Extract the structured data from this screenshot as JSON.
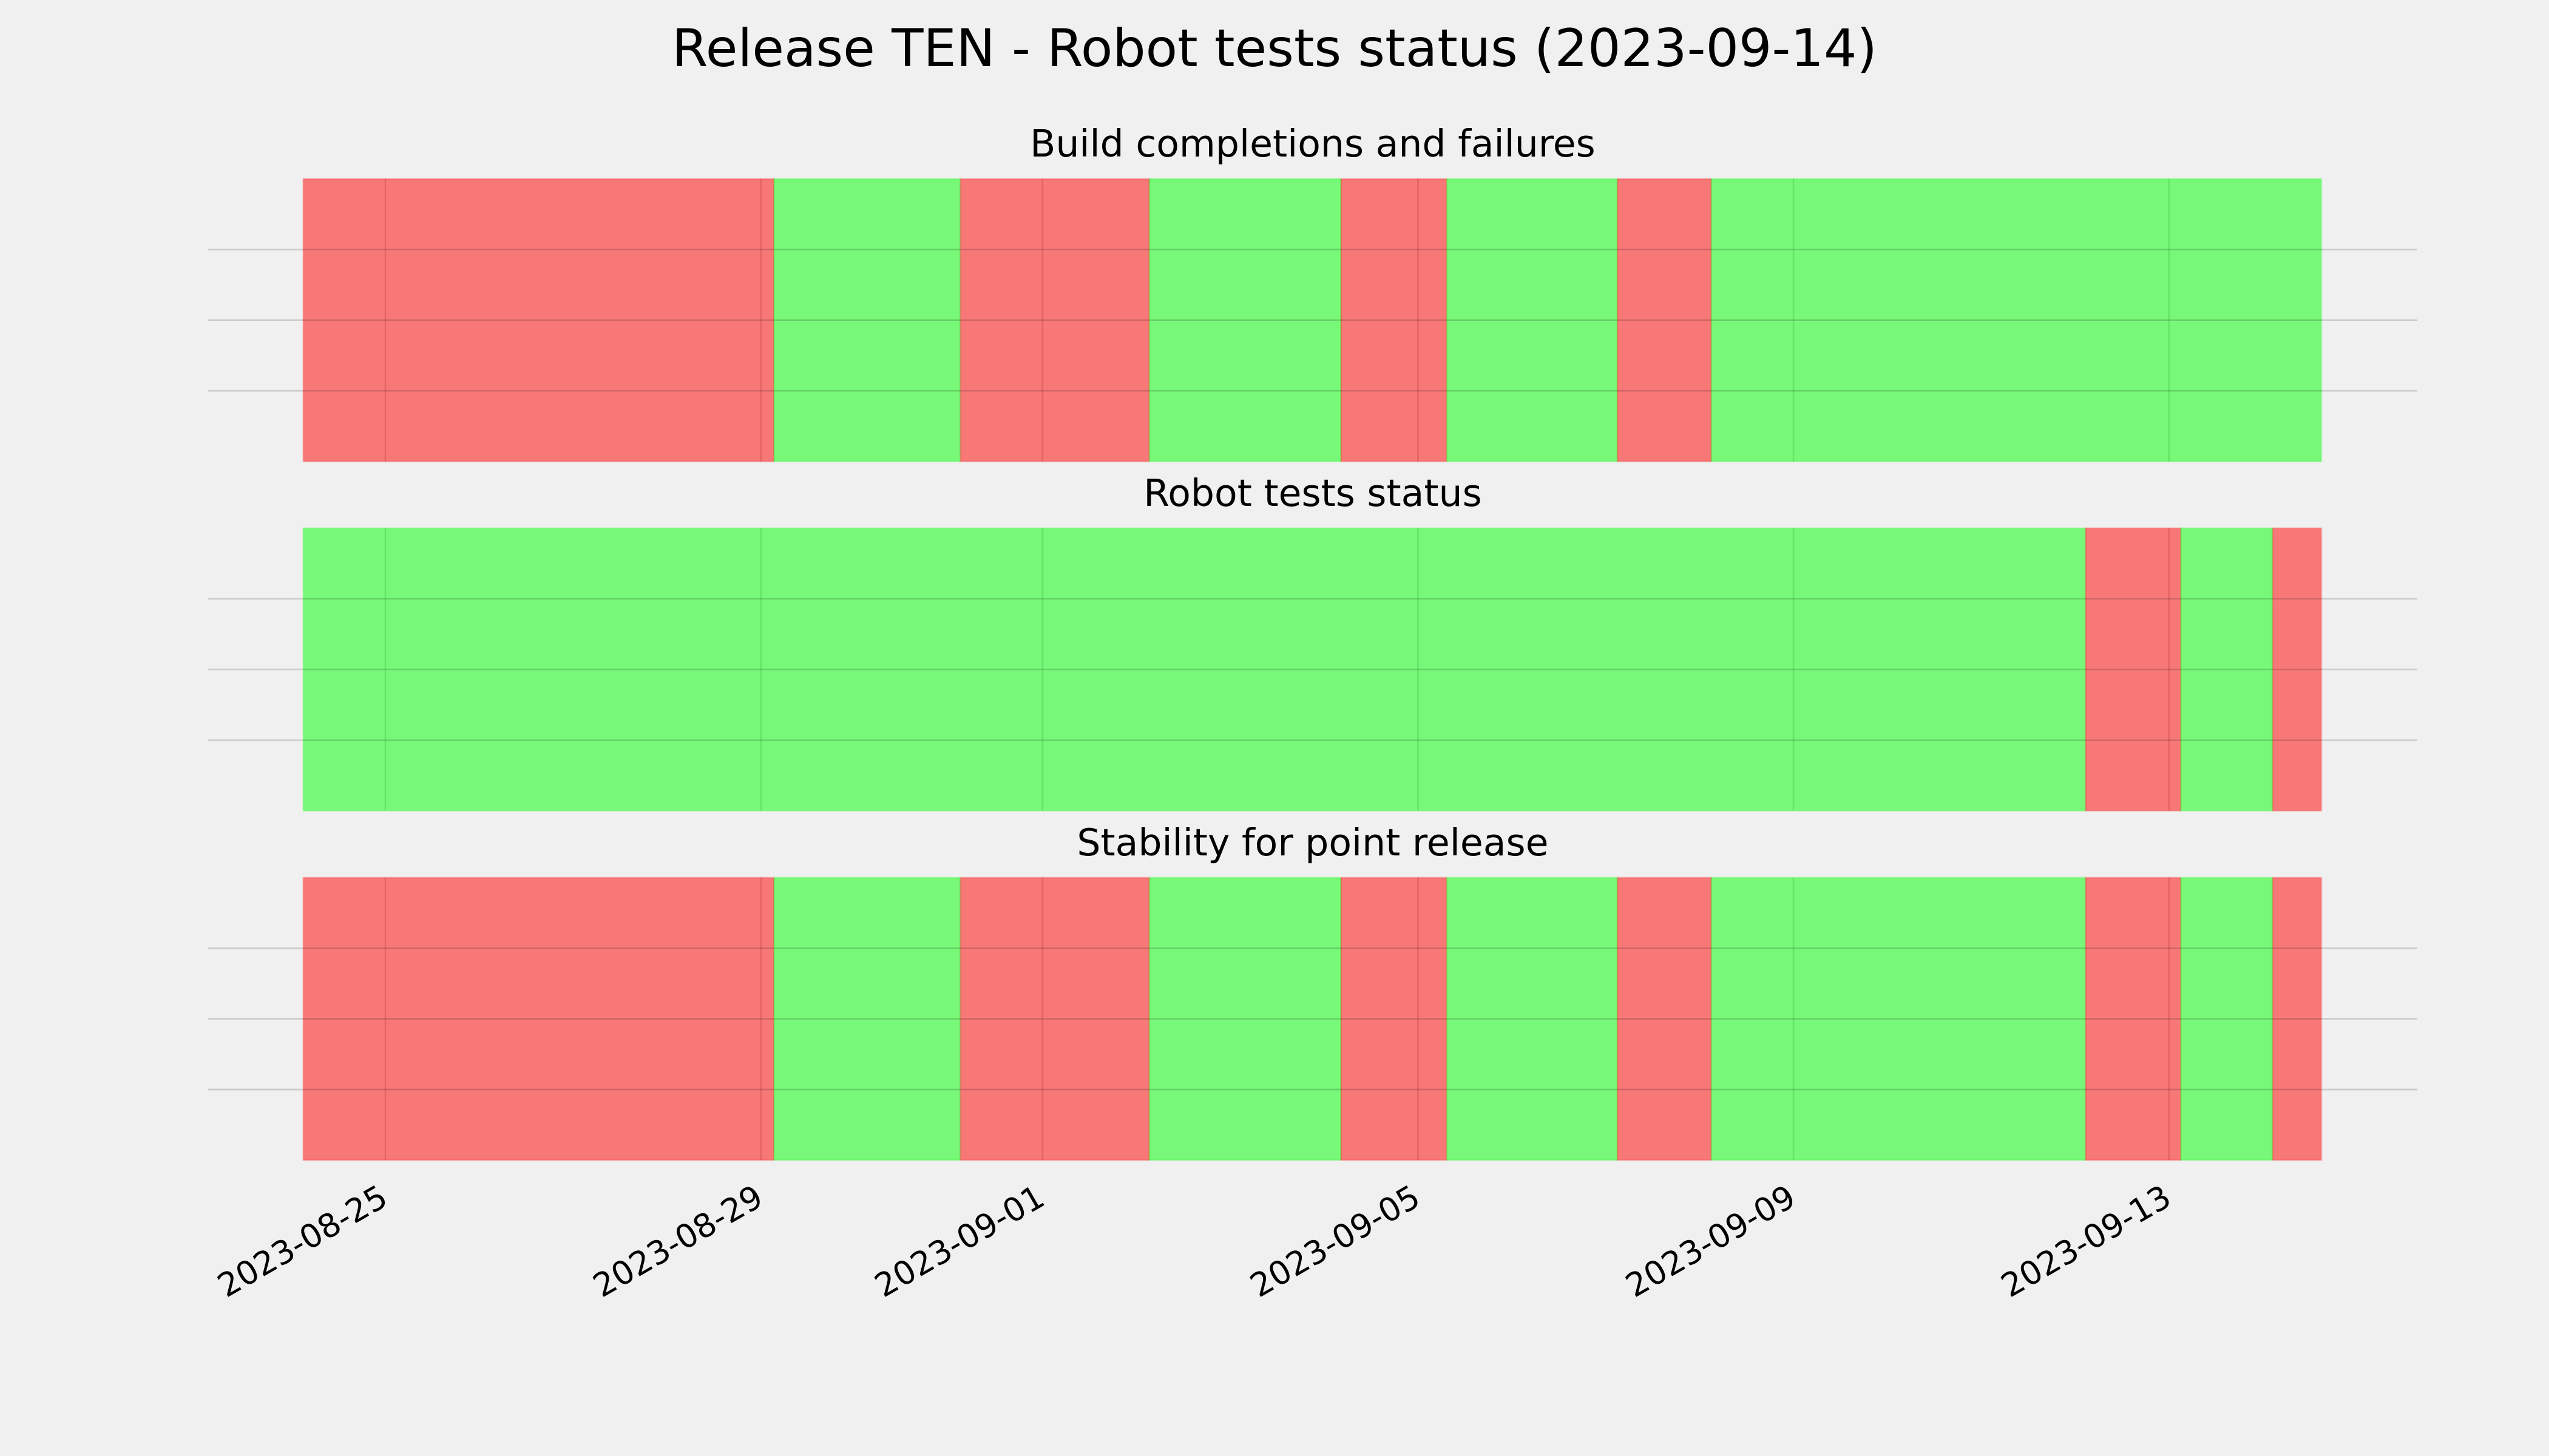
{
  "title": "Release TEN - Robot tests status (2023-09-14)",
  "chart_data": [
    {
      "type": "span",
      "title": "Build completions and failures",
      "xlim": [
        "2023-08-23T02:40",
        "2023-09-15T15:30"
      ],
      "ylim": [
        0,
        1
      ],
      "yticks": [
        0.25,
        0.5,
        0.75
      ],
      "grid": true,
      "xticks": [
        "2023-08-25",
        "2023-08-29",
        "2023-09-01",
        "2023-09-05",
        "2023-09-09",
        "2023-09-13"
      ],
      "spans": [
        {
          "start": "2023-08-24T03:00",
          "end": "2023-08-29T03:20",
          "color": "#ff0000"
        },
        {
          "start": "2023-08-29T03:20",
          "end": "2023-08-31T03:00",
          "color": "#00ff00"
        },
        {
          "start": "2023-08-31T03:00",
          "end": "2023-09-02T03:20",
          "color": "#ff0000"
        },
        {
          "start": "2023-09-02T03:20",
          "end": "2023-09-04T04:20",
          "color": "#00ff00"
        },
        {
          "start": "2023-09-04T04:20",
          "end": "2023-09-05T07:20",
          "color": "#ff0000"
        },
        {
          "start": "2023-09-05T07:20",
          "end": "2023-09-07T03:00",
          "color": "#00ff00"
        },
        {
          "start": "2023-09-07T03:00",
          "end": "2023-09-08T03:00",
          "color": "#ff0000"
        },
        {
          "start": "2023-09-08T03:00",
          "end": "2023-09-14T15:00",
          "color": "#00ff00"
        }
      ]
    },
    {
      "type": "span",
      "title": "Robot tests status",
      "xlim": [
        "2023-08-23T02:40",
        "2023-09-15T15:30"
      ],
      "ylim": [
        0,
        1
      ],
      "yticks": [
        0.25,
        0.5,
        0.75
      ],
      "grid": true,
      "xticks": [
        "2023-08-25",
        "2023-08-29",
        "2023-09-01",
        "2023-09-05",
        "2023-09-09",
        "2023-09-13"
      ],
      "spans": [
        {
          "start": "2023-08-24T03:00",
          "end": "2023-09-12T02:40",
          "color": "#00ff00"
        },
        {
          "start": "2023-09-12T02:40",
          "end": "2023-09-13T03:00",
          "color": "#ff0000"
        },
        {
          "start": "2023-09-13T03:00",
          "end": "2023-09-14T02:30",
          "color": "#00ff00"
        },
        {
          "start": "2023-09-14T02:30",
          "end": "2023-09-14T15:00",
          "color": "#ff0000"
        }
      ]
    },
    {
      "type": "span",
      "title": "Stability for point release",
      "xlim": [
        "2023-08-23T02:40",
        "2023-09-15T15:30"
      ],
      "ylim": [
        0,
        1
      ],
      "yticks": [
        0.25,
        0.5,
        0.75
      ],
      "grid": true,
      "xticks": [
        "2023-08-25",
        "2023-08-29",
        "2023-09-01",
        "2023-09-05",
        "2023-09-09",
        "2023-09-13"
      ],
      "spans": [
        {
          "start": "2023-08-24T03:00",
          "end": "2023-08-29T03:20",
          "color": "#ff0000"
        },
        {
          "start": "2023-08-29T03:20",
          "end": "2023-08-31T03:00",
          "color": "#00ff00"
        },
        {
          "start": "2023-08-31T03:00",
          "end": "2023-09-02T03:20",
          "color": "#ff0000"
        },
        {
          "start": "2023-09-02T03:20",
          "end": "2023-09-04T04:20",
          "color": "#00ff00"
        },
        {
          "start": "2023-09-04T04:20",
          "end": "2023-09-05T07:20",
          "color": "#ff0000"
        },
        {
          "start": "2023-09-05T07:20",
          "end": "2023-09-07T03:00",
          "color": "#00ff00"
        },
        {
          "start": "2023-09-07T03:00",
          "end": "2023-09-08T03:00",
          "color": "#ff0000"
        },
        {
          "start": "2023-09-08T03:00",
          "end": "2023-09-12T02:40",
          "color": "#00ff00"
        },
        {
          "start": "2023-09-12T02:40",
          "end": "2023-09-13T03:00",
          "color": "#ff0000"
        },
        {
          "start": "2023-09-13T03:00",
          "end": "2023-09-14T02:30",
          "color": "#00ff00"
        },
        {
          "start": "2023-09-14T02:30",
          "end": "2023-09-14T15:00",
          "color": "#ff0000"
        }
      ]
    }
  ]
}
